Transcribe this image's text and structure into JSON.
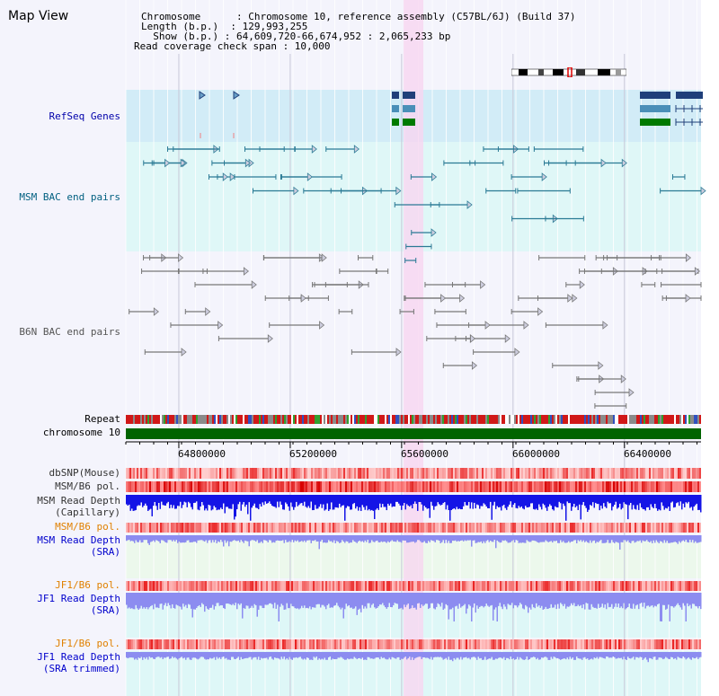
{
  "header": {
    "view_title": "Map View",
    "chromosome": "Chromosome      : Chromosome 10, reference assembly (C57BL/6J) (Build 37)",
    "length": "Length (b.p.)  : 129,993,255",
    "show": "  Show (b.p.) : 64,609,720-66,674,952 : 2,065,233 bp",
    "coverage": "Read coverage check span : 10,000"
  },
  "tracks": {
    "refseq": "RefSeq Genes",
    "msm_bac": "MSM BAC end pairs",
    "b6n_bac": "B6N BAC end pairs",
    "repeat": "Repeat",
    "chromosome": "chromosome 10",
    "dbsnp": "dbSNP(Mouse)",
    "msm_b6_pol_1": "MSM/B6 pol.",
    "msm_depth_cap_1": "MSM Read Depth",
    "msm_depth_cap_2": "(Capillary)",
    "msm_b6_pol_2": "MSM/B6 pol.",
    "msm_depth_sra_1": "MSM Read Depth",
    "msm_depth_sra_2": "(SRA)",
    "jf1_b6_pol_1": "JF1/B6 pol.",
    "jf1_depth_sra_1": "JF1 Read Depth",
    "jf1_depth_sra_2": "(SRA)",
    "jf1_b6_pol_2": "JF1/B6 pol.",
    "jf1_depth_trim_1": "JF1 Read Depth",
    "jf1_depth_trim_2": "(SRA trimmed)"
  },
  "axis": {
    "ticks": [
      "64800000",
      "65200000",
      "65600000",
      "66000000",
      "66400000"
    ],
    "tick_values": [
      64800000,
      65200000,
      65600000,
      66000000,
      66400000
    ],
    "range": [
      64609720,
      66674952
    ]
  },
  "colors": {
    "background": "#f4f4fc",
    "refseq_band": "#d2ecf7",
    "msm_band": "#dff7f7",
    "b6n_band": "#f4f4fc",
    "highlight": "#f8d6f0",
    "gene_navy": "#1f3f7a",
    "gene_blue": "#4a8fb8",
    "gene_green": "#007a00",
    "msm_feature": "#2a7a95",
    "b6n_feature": "#777777",
    "chromosome_bar": "#006400",
    "refseq_label": "#0000aa",
    "msm_label": "#005f80",
    "b6n_label": "#555555",
    "msm_pol_label": "#e08000",
    "depth_label": "#0000cc"
  }
}
